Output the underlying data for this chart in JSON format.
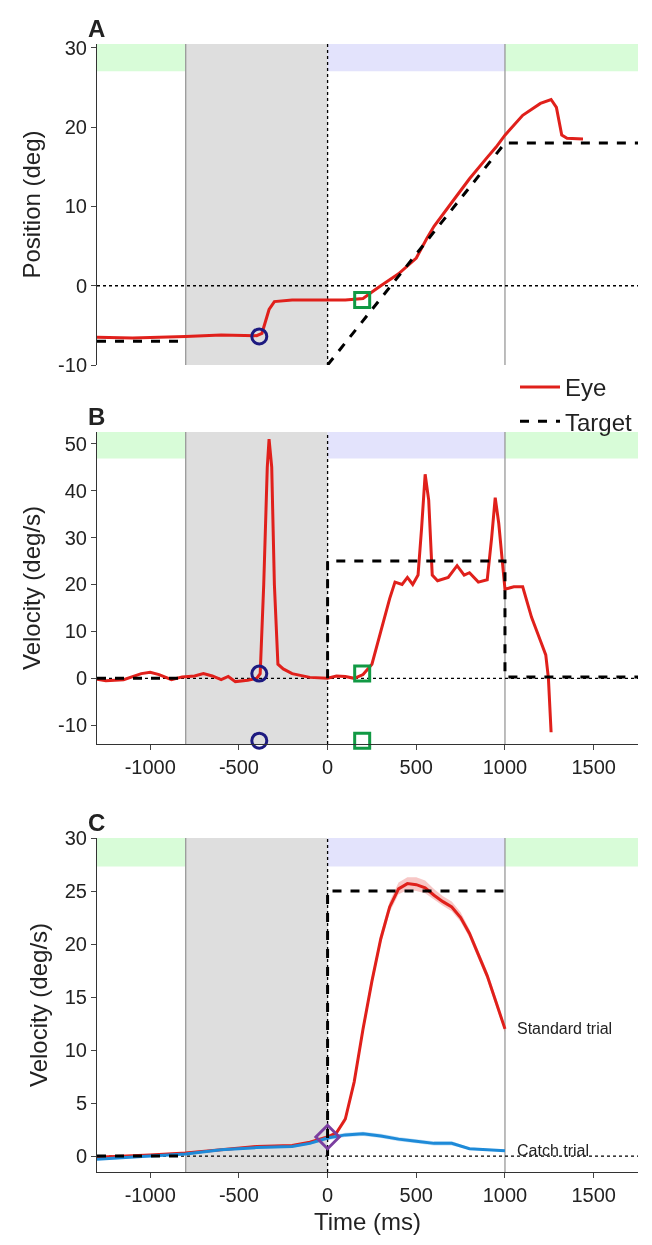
{
  "chart_data": [
    {
      "type": "line",
      "title": "A",
      "ylabel": "Position (deg)",
      "xlim": [
        -1300,
        1750
      ],
      "ylim": [
        -10,
        30.5
      ],
      "yticks": [
        -10,
        0,
        10,
        20,
        30
      ],
      "tick_labels": "y",
      "grid": false,
      "legend": "bottom right",
      "series": [
        {
          "name": "Eye",
          "color": "#e0201b",
          "line_style": "solid",
          "x": [
            -1300,
            -1100,
            -800,
            -600,
            -400,
            -370,
            -330,
            -300,
            -200,
            0,
            100,
            200,
            250,
            300,
            400,
            500,
            560,
            600,
            700,
            800,
            900,
            950,
            1000,
            1100,
            1200,
            1260,
            1290,
            1320,
            1350,
            1440
          ],
          "values": [
            -6.5,
            -6.6,
            -6.4,
            -6.2,
            -6.3,
            -6,
            -3,
            -2,
            -1.8,
            -1.8,
            -1.8,
            -1.6,
            -0.8,
            0,
            1.5,
            3.5,
            6,
            7.5,
            10.5,
            13.5,
            16.2,
            17.5,
            19,
            21.5,
            23,
            23.5,
            22.5,
            19,
            18.6,
            18.5
          ]
        },
        {
          "name": "Target",
          "color": "#000000",
          "line_style": "dashed",
          "x": [
            -1300,
            -800,
            -400,
            0,
            1000,
            1750
          ],
          "values": [
            -7,
            -7,
            null,
            -10,
            18,
            18
          ]
        },
        {
          "color": "#1d1a80",
          "type": "scatter",
          "marker": "circle",
          "x": [
            -385
          ],
          "values": [
            -6.4
          ]
        },
        {
          "color": "#119944",
          "type": "scatter",
          "marker": "square",
          "x": [
            195
          ],
          "values": [
            -1.8
          ]
        }
      ],
      "ref_lines": [
        {
          "axis": "x",
          "value": -800,
          "color": "#999999",
          "line_style": "solid"
        },
        {
          "axis": "x",
          "value": 1000,
          "color": "#999999",
          "line_style": "solid"
        },
        {
          "axis": "x",
          "value": 0,
          "color": "#000000",
          "line_style": "dotted"
        },
        {
          "axis": "y",
          "value": 0,
          "color": "#000000",
          "line_style": "dotted"
        }
      ],
      "bands": [
        {
          "axis": "x",
          "from": -800,
          "to": 0,
          "color": "#dedede"
        },
        {
          "axis": "x",
          "from": -1300,
          "to": -800,
          "color": "#d8fcd8"
        },
        {
          "axis": "x",
          "from": 0,
          "to": 1000,
          "color": "#e3e3fc"
        },
        {
          "axis": "x",
          "from": 1000,
          "to": 1750,
          "color": "#d8fcd8"
        }
      ]
    },
    {
      "type": "line",
      "title": "B",
      "ylabel": "Velocity (deg/s)",
      "xlim": [
        -1300,
        1750
      ],
      "xticks": [
        -1000,
        -500,
        0,
        500,
        1000,
        1500
      ],
      "ylim": [
        -14,
        52.5
      ],
      "yticks": [
        -10,
        0,
        10,
        20,
        30,
        40,
        50
      ],
      "grid": false,
      "series": [
        {
          "color": "#e0201b",
          "line_style": "solid",
          "x": [
            -1300,
            -1250,
            -1150,
            -1050,
            -1000,
            -950,
            -880,
            -820,
            -750,
            -700,
            -650,
            -600,
            -560,
            -520,
            -450,
            -400,
            -380,
            -360,
            -340,
            -330,
            -315,
            -300,
            -280,
            -250,
            -200,
            -100,
            0,
            50,
            100,
            150,
            200,
            250,
            300,
            350,
            380,
            420,
            450,
            480,
            510,
            530,
            550,
            570,
            590,
            620,
            680,
            730,
            770,
            800,
            850,
            900,
            925,
            945,
            965,
            985,
            1000,
            1050,
            1100,
            1150,
            1200,
            1230,
            1245,
            1260
          ],
          "values": [
            -0.2,
            -0.5,
            -0.3,
            1,
            1.3,
            0.8,
            -0.3,
            0.3,
            0.5,
            1,
            0.5,
            -0.3,
            0.4,
            -0.7,
            -0.4,
            0,
            1,
            20,
            45,
            51,
            45,
            20,
            3,
            2,
            1,
            0.2,
            0,
            0.5,
            0.4,
            0,
            0.8,
            3,
            10,
            17,
            20.5,
            20,
            21.5,
            20,
            22,
            32,
            43.5,
            38,
            22,
            20.8,
            21.5,
            24,
            22,
            22.5,
            20.5,
            21,
            30,
            38.5,
            33,
            25,
            19,
            19.5,
            19.5,
            13,
            8,
            5,
            0,
            -11.5
          ]
        },
        {
          "color": "#000000",
          "line_style": "dashed",
          "x": [
            -1300,
            -800,
            -400,
            0,
            0,
            1000,
            1000,
            1750
          ],
          "values": [
            0,
            0,
            null,
            0,
            25,
            25,
            0.3,
            0.3
          ]
        },
        {
          "color": "#1d1a80",
          "type": "scatter",
          "marker": "circle",
          "x": [
            -385,
            -385
          ],
          "values": [
            1,
            -13.3
          ]
        },
        {
          "color": "#119944",
          "type": "scatter",
          "marker": "square",
          "x": [
            195,
            195
          ],
          "values": [
            1,
            -13.3
          ]
        }
      ],
      "ref_lines": [
        {
          "axis": "x",
          "value": -800,
          "color": "#999999",
          "line_style": "solid"
        },
        {
          "axis": "x",
          "value": 1000,
          "color": "#999999",
          "line_style": "solid"
        },
        {
          "axis": "x",
          "value": 0,
          "color": "#000000",
          "line_style": "dotted"
        },
        {
          "axis": "y",
          "value": 0,
          "color": "#000000",
          "line_style": "dotted"
        }
      ],
      "bands": [
        {
          "axis": "x",
          "from": -800,
          "to": 0,
          "color": "#dedede"
        },
        {
          "axis": "x",
          "from": -1300,
          "to": -800,
          "color": "#d8fcd8"
        },
        {
          "axis": "x",
          "from": 0,
          "to": 1000,
          "color": "#e3e3fc"
        },
        {
          "axis": "x",
          "from": 1000,
          "to": 1750,
          "color": "#d8fcd8"
        }
      ]
    },
    {
      "type": "line",
      "title": "C",
      "xlabel": "Time (ms)",
      "ylabel": "Velocity (deg/s)",
      "xlim": [
        -1300,
        1750
      ],
      "xticks": [
        -1000,
        -500,
        0,
        500,
        1000,
        1500
      ],
      "ylim": [
        -1.5,
        30
      ],
      "yticks": [
        0,
        5,
        10,
        15,
        20,
        25,
        30
      ],
      "grid": false,
      "series": [
        {
          "name": "Standard trial",
          "color": "#e0201b",
          "line_style": "solid",
          "x": [
            -1300,
            -1000,
            -800,
            -600,
            -400,
            -200,
            -100,
            0,
            50,
            100,
            150,
            200,
            250,
            300,
            350,
            400,
            450,
            500,
            550,
            600,
            650,
            700,
            750,
            800,
            850,
            900,
            950,
            1000
          ],
          "values": [
            -0.1,
            0.1,
            0.3,
            0.6,
            0.9,
            1,
            1.3,
            1.8,
            2.2,
            3.5,
            7,
            12,
            16.5,
            20.5,
            23.5,
            25.2,
            25.7,
            25.6,
            25.3,
            24.6,
            24,
            23.5,
            22.5,
            21,
            19,
            17,
            14.5,
            12
          ],
          "lower": [
            -0.2,
            0,
            0.2,
            0.5,
            0.8,
            0.9,
            1.2,
            1.6,
            2,
            3.2,
            6.6,
            11.5,
            16,
            20,
            23,
            24.7,
            25.1,
            25,
            24.8,
            24.2,
            23.6,
            23.1,
            22.1,
            20.6,
            18.6,
            16.6,
            14.1,
            11.7
          ],
          "upper": [
            0,
            0.2,
            0.4,
            0.7,
            1,
            1.1,
            1.4,
            2,
            2.4,
            3.8,
            7.4,
            12.5,
            17,
            21,
            24,
            25.8,
            26.3,
            26.3,
            26,
            25.2,
            24.5,
            24,
            23,
            21.4,
            19.4,
            17.4,
            14.9,
            12.3
          ]
        },
        {
          "name": "Catch trial",
          "color": "#1e8ad8",
          "line_style": "solid",
          "x": [
            -1300,
            -1000,
            -800,
            -600,
            -400,
            -200,
            -100,
            0,
            100,
            200,
            300,
            400,
            500,
            600,
            700,
            800,
            900,
            1000
          ],
          "values": [
            -0.3,
            0,
            0.2,
            0.6,
            0.8,
            0.9,
            1.2,
            1.7,
            2,
            2.1,
            1.9,
            1.6,
            1.4,
            1.2,
            1.2,
            0.7,
            0.6,
            0.5
          ],
          "lower": [
            -0.4,
            -0.1,
            0.1,
            0.5,
            0.7,
            0.8,
            1.1,
            1.5,
            1.8,
            1.9,
            1.7,
            1.4,
            1.2,
            1,
            1,
            0.6,
            0.5,
            0.4
          ],
          "upper": [
            -0.2,
            0.1,
            0.3,
            0.7,
            0.9,
            1,
            1.3,
            1.9,
            2.2,
            2.3,
            2.1,
            1.8,
            1.6,
            1.4,
            1.4,
            0.8,
            0.7,
            0.6
          ]
        },
        {
          "color": "#000000",
          "line_style": "dashed",
          "x": [
            -1300,
            -800,
            -400,
            0,
            0,
            1000
          ],
          "values": [
            0,
            0,
            null,
            0,
            25,
            25
          ]
        },
        {
          "color": "#7b3fa0",
          "type": "scatter",
          "marker": "diamond",
          "x": [
            0
          ],
          "values": [
            1.8
          ]
        }
      ],
      "ref_lines": [
        {
          "axis": "x",
          "value": -800,
          "color": "#999999",
          "line_style": "solid"
        },
        {
          "axis": "x",
          "value": 1000,
          "color": "#999999",
          "line_style": "solid"
        },
        {
          "axis": "x",
          "value": 0,
          "color": "#000000",
          "line_style": "dotted"
        },
        {
          "axis": "y",
          "value": 0,
          "color": "#000000",
          "line_style": "dotted"
        }
      ],
      "bands": [
        {
          "axis": "x",
          "from": -800,
          "to": 0,
          "color": "#dedede"
        },
        {
          "axis": "x",
          "from": -1300,
          "to": -800,
          "color": "#d8fcd8"
        },
        {
          "axis": "x",
          "from": 0,
          "to": 1000,
          "color": "#e3e3fc"
        },
        {
          "axis": "x",
          "from": 1000,
          "to": 1750,
          "color": "#d8fcd8"
        }
      ]
    }
  ]
}
